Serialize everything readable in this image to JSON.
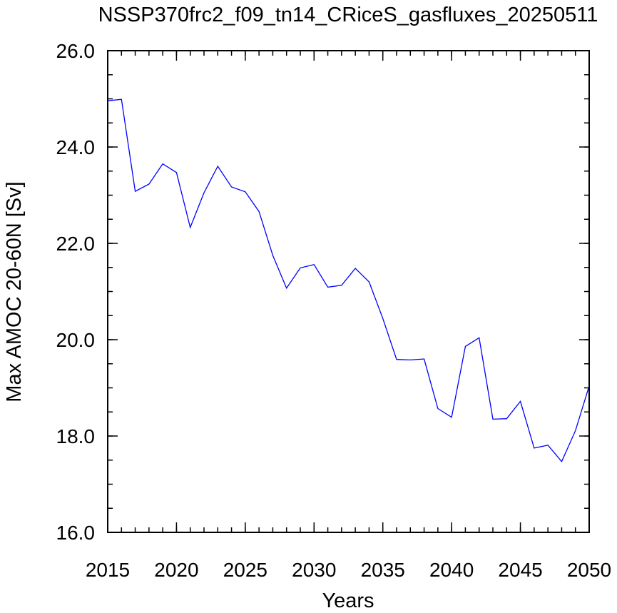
{
  "chart_data": {
    "type": "line",
    "title": "NSSP370frc2_f09_tn14_CRiceS_gasfluxes_20250511",
    "xlabel": "Years",
    "ylabel": "Max AMOC 20-60N [Sv]",
    "xlim": [
      2015,
      2050
    ],
    "ylim": [
      16.0,
      26.0
    ],
    "xticks": [
      "2015",
      "2020",
      "2025",
      "2030",
      "2035",
      "2040",
      "2045",
      "2050"
    ],
    "yticks": [
      "16.0",
      "18.0",
      "20.0",
      "22.0",
      "24.0",
      "26.0"
    ],
    "grid": false,
    "line_color": "#0000ff",
    "series": [
      {
        "x": [
          2015,
          2016,
          2017,
          2018,
          2019,
          2020,
          2021,
          2022,
          2023,
          2024,
          2025,
          2026,
          2027,
          2028,
          2029,
          2030,
          2031,
          2032,
          2033,
          2034,
          2035,
          2036,
          2037,
          2038,
          2039,
          2040,
          2041,
          2042,
          2043,
          2044,
          2045,
          2046,
          2047,
          2048,
          2049,
          2050
        ],
        "values": [
          24.96,
          24.99,
          23.08,
          23.23,
          23.65,
          23.47,
          22.33,
          23.05,
          23.6,
          23.17,
          23.07,
          22.66,
          21.75,
          21.07,
          21.49,
          21.56,
          21.09,
          21.13,
          21.48,
          21.2,
          20.44,
          19.59,
          19.58,
          19.6,
          18.57,
          18.39,
          19.86,
          20.04,
          18.35,
          18.36,
          18.72,
          17.75,
          17.81,
          17.47,
          18.11,
          19.04
        ]
      }
    ]
  }
}
